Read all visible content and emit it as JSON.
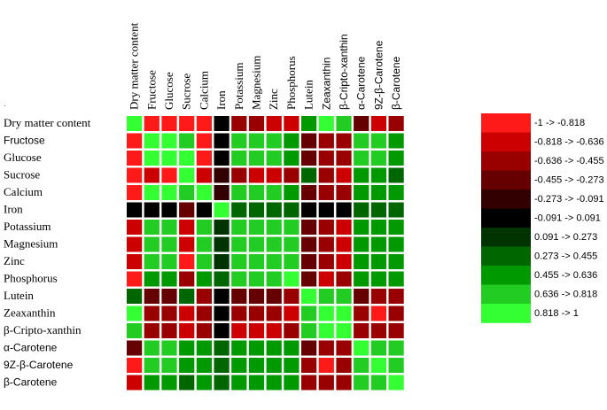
{
  "chart_data": {
    "type": "heatmap",
    "title": "",
    "xlabel": "",
    "ylabel": "",
    "rows": [
      "Dry matter content",
      "Fructose",
      "Glucose",
      "Sucrose",
      "Calcium",
      "Iron",
      "Potassium",
      "Magnesium",
      "Zinc",
      "Phosphorus",
      "Lutein",
      "Zeaxanthin",
      "β-Cripto-xanthin",
      "α-Carotene",
      "9Z-β-Carotene",
      "β-Carotene"
    ],
    "columns": [
      "Dry matter content",
      "Fructose",
      "Glucose",
      "Sucrose",
      "Calcium",
      "Iron",
      "Potassium",
      "Magnesium",
      "Zinc",
      "Phosphorus",
      "Lutein",
      "Zeaxanthin",
      "β-Cripto-xanthin",
      "α-Carotene",
      "9Z-β-Carotene",
      "β-Carotene"
    ],
    "values": [
      [
        1.0,
        -0.9,
        -0.9,
        -0.9,
        -0.9,
        0.0,
        -0.6,
        -0.6,
        -0.7,
        -0.7,
        0.6,
        0.9,
        0.75,
        -0.4,
        -0.75,
        -0.6
      ],
      [
        -0.9,
        0.9,
        0.9,
        0.75,
        -0.9,
        0.0,
        0.7,
        0.7,
        0.7,
        0.55,
        -0.4,
        -0.55,
        -0.55,
        0.7,
        0.7,
        0.55
      ],
      [
        -0.9,
        0.9,
        0.9,
        0.85,
        -0.9,
        0.0,
        0.7,
        0.7,
        0.7,
        0.55,
        -0.4,
        -0.55,
        -0.55,
        0.7,
        0.7,
        0.55
      ],
      [
        -0.85,
        -0.7,
        -0.85,
        0.85,
        -0.75,
        -0.2,
        -0.6,
        -0.65,
        -0.75,
        -0.55,
        0.4,
        -0.55,
        -0.65,
        0.55,
        0.55,
        0.4
      ],
      [
        -0.9,
        0.85,
        0.85,
        0.75,
        0.9,
        -0.2,
        0.7,
        0.7,
        0.7,
        0.55,
        -0.3,
        -0.6,
        -0.6,
        0.6,
        0.6,
        0.55
      ],
      [
        0.0,
        0.0,
        0.0,
        -0.3,
        0.0,
        0.9,
        0.35,
        0.4,
        0.4,
        0.4,
        0.0,
        0.0,
        0.0,
        0.4,
        0.35,
        0.35
      ],
      [
        -0.65,
        0.7,
        0.7,
        -0.75,
        0.7,
        0.2,
        0.8,
        0.8,
        0.8,
        0.7,
        -0.35,
        -0.6,
        -0.75,
        0.6,
        0.6,
        0.6
      ],
      [
        -0.65,
        0.7,
        0.7,
        -0.75,
        0.7,
        0.2,
        0.8,
        0.8,
        0.8,
        0.7,
        -0.35,
        -0.6,
        -0.75,
        0.6,
        0.6,
        0.6
      ],
      [
        -0.65,
        0.7,
        0.7,
        -0.85,
        0.7,
        0.25,
        0.8,
        0.8,
        0.8,
        0.7,
        -0.35,
        -0.6,
        -0.75,
        0.6,
        0.6,
        0.6
      ],
      [
        -0.9,
        0.55,
        0.55,
        -0.55,
        0.55,
        0.35,
        0.7,
        0.7,
        0.7,
        0.9,
        -0.45,
        -0.75,
        -0.6,
        0.55,
        0.55,
        0.55
      ],
      [
        0.45,
        -0.45,
        -0.4,
        0.4,
        -0.55,
        0.0,
        -0.45,
        -0.45,
        -0.45,
        -0.5,
        0.9,
        0.75,
        0.75,
        -0.35,
        -0.55,
        -0.6
      ],
      [
        0.9,
        -0.6,
        -0.6,
        -0.65,
        -0.6,
        0.0,
        -0.6,
        -0.6,
        -0.6,
        -0.75,
        0.75,
        0.9,
        0.85,
        -0.6,
        -0.85,
        -0.6
      ],
      [
        0.75,
        -0.6,
        -0.6,
        -0.65,
        -0.6,
        0.0,
        -0.75,
        -0.75,
        -0.75,
        -0.6,
        0.75,
        0.85,
        0.9,
        -0.5,
        -0.6,
        -0.6
      ],
      [
        -0.45,
        0.7,
        0.7,
        0.55,
        0.6,
        0.4,
        0.6,
        0.6,
        0.6,
        0.55,
        -0.35,
        -0.6,
        -0.6,
        0.9,
        0.8,
        0.8
      ],
      [
        -0.85,
        0.7,
        0.7,
        0.55,
        0.6,
        0.35,
        0.6,
        0.6,
        0.6,
        0.55,
        -0.55,
        -0.85,
        -0.6,
        0.8,
        0.9,
        0.8
      ],
      [
        -0.7,
        0.55,
        0.55,
        0.4,
        0.55,
        0.35,
        0.6,
        0.6,
        0.6,
        0.55,
        -0.6,
        -0.6,
        -0.6,
        0.8,
        0.8,
        0.9
      ]
    ],
    "legend": {
      "placement": "right",
      "bins": [
        {
          "label": "-1 -> -0.818",
          "color": "#ff1a1a"
        },
        {
          "label": "-0.818 -> -0.636",
          "color": "#cc0000"
        },
        {
          "label": "-0.636 -> -0.455",
          "color": "#990000"
        },
        {
          "label": "-0.455 -> -0.273",
          "color": "#660000"
        },
        {
          "label": "-0.273 -> -0.091",
          "color": "#330000"
        },
        {
          "label": "-0.091 -> 0.091",
          "color": "#000000"
        },
        {
          "label": "0.091 -> 0.273",
          "color": "#003300"
        },
        {
          "label": "0.273 -> 0.455",
          "color": "#006600"
        },
        {
          "label": "0.455 -> 0.636",
          "color": "#009900"
        },
        {
          "label": "0.636 -> 0.818",
          "color": "#22cc22"
        },
        {
          "label": "0.818 -> 1",
          "color": "#33ff33"
        }
      ]
    },
    "corner_mark": "."
  }
}
